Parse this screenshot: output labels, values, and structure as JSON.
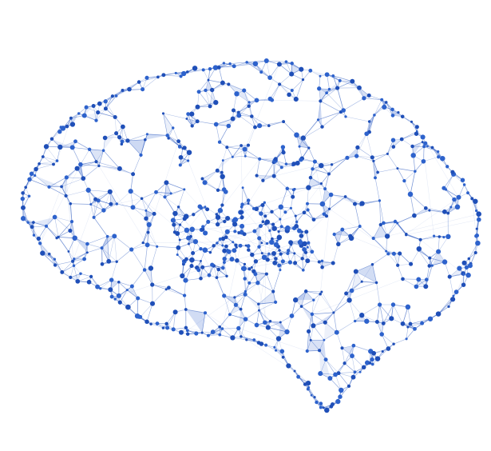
{
  "illustration": {
    "subject": "brain-network-icon",
    "colors": {
      "background": "#ffffff",
      "node": "#1f4fb8",
      "node_highlight": "#2d62cc",
      "edge": "#3b66c4",
      "facet": "#5a80d6"
    }
  }
}
